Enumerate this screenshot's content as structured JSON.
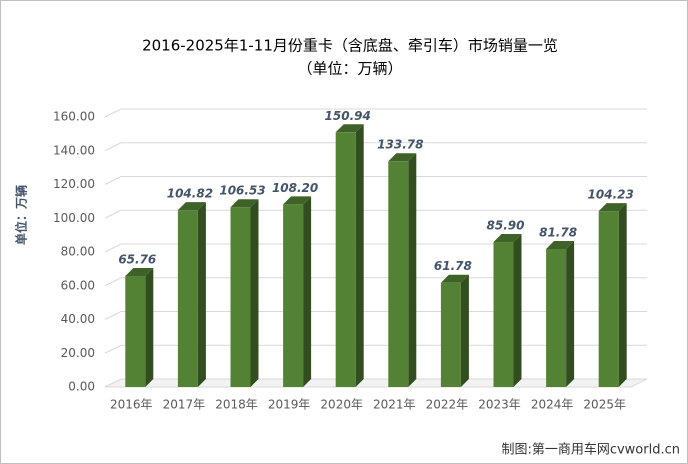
{
  "chart_data": {
    "type": "bar",
    "title": "2016-2025年1-11月份重卡（含底盘、牵引车）市场销量一览",
    "subtitle": "（单位：万辆）",
    "y_label": "单位：万辆",
    "source": "制图:第一商用车网cvworld.cn",
    "categories": [
      "2016年",
      "2017年",
      "2018年",
      "2019年",
      "2020年",
      "2021年",
      "2022年",
      "2023年",
      "2024年",
      "2025年"
    ],
    "values": [
      65.76,
      104.82,
      106.53,
      108.2,
      150.94,
      133.78,
      61.78,
      85.9,
      81.78,
      104.23
    ],
    "value_labels": [
      "65.76",
      "104.82",
      "106.53",
      "108.20",
      "150.94",
      "133.78",
      "61.78",
      "85.90",
      "81.78",
      "104.23"
    ],
    "color": "#548235",
    "ylim": [
      0,
      160
    ],
    "yticks": [
      {
        "value": 0,
        "label": "0.00"
      },
      {
        "value": 20,
        "label": "20.00"
      },
      {
        "value": 40,
        "label": "40.00"
      },
      {
        "value": 60,
        "label": "60.00"
      },
      {
        "value": 80,
        "label": "80.00"
      },
      {
        "value": 100,
        "label": "100.00"
      },
      {
        "value": 120,
        "label": "120.00"
      },
      {
        "value": 140,
        "label": "140.00"
      },
      {
        "value": 160,
        "label": "160.00"
      }
    ],
    "grid": true
  }
}
